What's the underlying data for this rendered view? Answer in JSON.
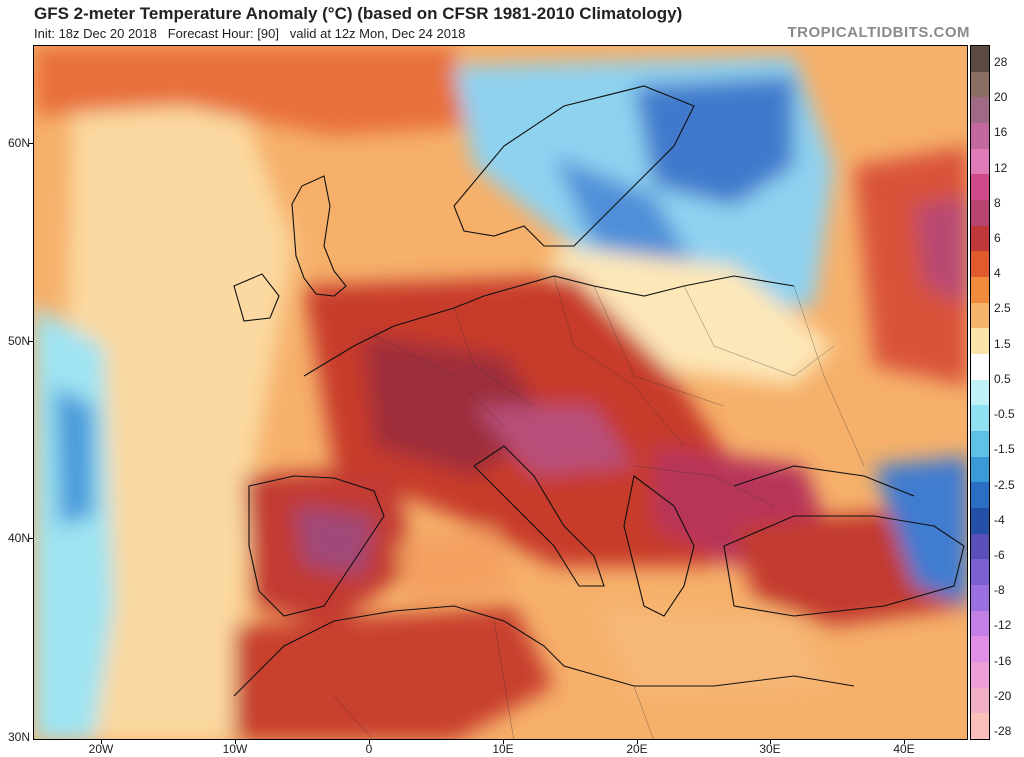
{
  "header": {
    "title": "GFS 2-meter Temperature Anomaly (°C) (based on CFSR 1981-2010 Climatology)",
    "subtitle": "Init: 18z Dec 20 2018   Forecast Hour: [90]   valid at 12z Mon, Dec 24 2018",
    "site": "TROPICALTIDBITS.COM"
  },
  "map": {
    "lat_labels": [
      "60N",
      "50N",
      "40N",
      "30N"
    ],
    "lon_labels": [
      "20W",
      "10W",
      "0",
      "10E",
      "20E",
      "30E",
      "40E"
    ]
  },
  "colorbar": {
    "labels": [
      "28",
      "20",
      "16",
      "12",
      "8",
      "6",
      "4",
      "2.5",
      "1.5",
      "0.5",
      "-0.5",
      "-1.5",
      "-2.5",
      "-4",
      "-6",
      "-8",
      "-12",
      "-16",
      "-20",
      "-28"
    ],
    "colors": [
      "#5a4a3f",
      "#8a6e63",
      "#a06a84",
      "#c2689f",
      "#e07ab8",
      "#d04a8a",
      "#b8456f",
      "#c0393a",
      "#e05a2c",
      "#f08a3c",
      "#f6b46a",
      "#fbe2a8",
      "#ffffff",
      "#bff2f6",
      "#8fe0f0",
      "#5ec2e8",
      "#3a9ad8",
      "#2a6fc4",
      "#234fa6",
      "#5a4fb8",
      "#7a5fd0",
      "#9a6fe0",
      "#c47fe6",
      "#e08fe4",
      "#ee9fd8",
      "#f4afc8",
      "#f8c0b8"
    ]
  }
}
